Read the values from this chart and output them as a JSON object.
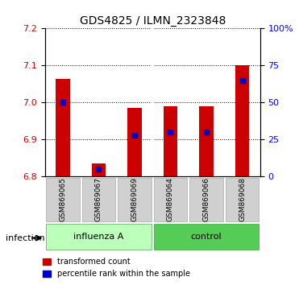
{
  "title": "GDS4825 / ILMN_2323848",
  "samples": [
    "GSM869065",
    "GSM869067",
    "GSM869069",
    "GSM869064",
    "GSM869066",
    "GSM869068"
  ],
  "groups": [
    "influenza A",
    "influenza A",
    "influenza A",
    "control",
    "control",
    "control"
  ],
  "group_labels": [
    "influenza A",
    "control"
  ],
  "group_colors": [
    "#aaffaa",
    "#00cc00"
  ],
  "transformed_counts": [
    7.065,
    6.835,
    6.985,
    6.99,
    6.99,
    7.1
  ],
  "percentile_ranks": [
    50,
    5,
    28,
    30,
    30,
    65
  ],
  "ylim_left": [
    6.8,
    7.2
  ],
  "ylim_right": [
    0,
    100
  ],
  "yticks_left": [
    6.8,
    6.9,
    7.0,
    7.1,
    7.2
  ],
  "yticks_right": [
    0,
    25,
    50,
    75,
    100
  ],
  "ytick_labels_right": [
    "0",
    "25",
    "50",
    "75",
    "100%"
  ],
  "bar_color": "#cc0000",
  "dot_color": "#0000cc",
  "bar_width": 0.4,
  "background_color": "#ffffff",
  "plot_bg_color": "#ffffff",
  "label_area_color": "#cccccc",
  "group_bar_light": "#ccffcc",
  "group_bar_dark": "#55cc55",
  "baseline": 6.8
}
